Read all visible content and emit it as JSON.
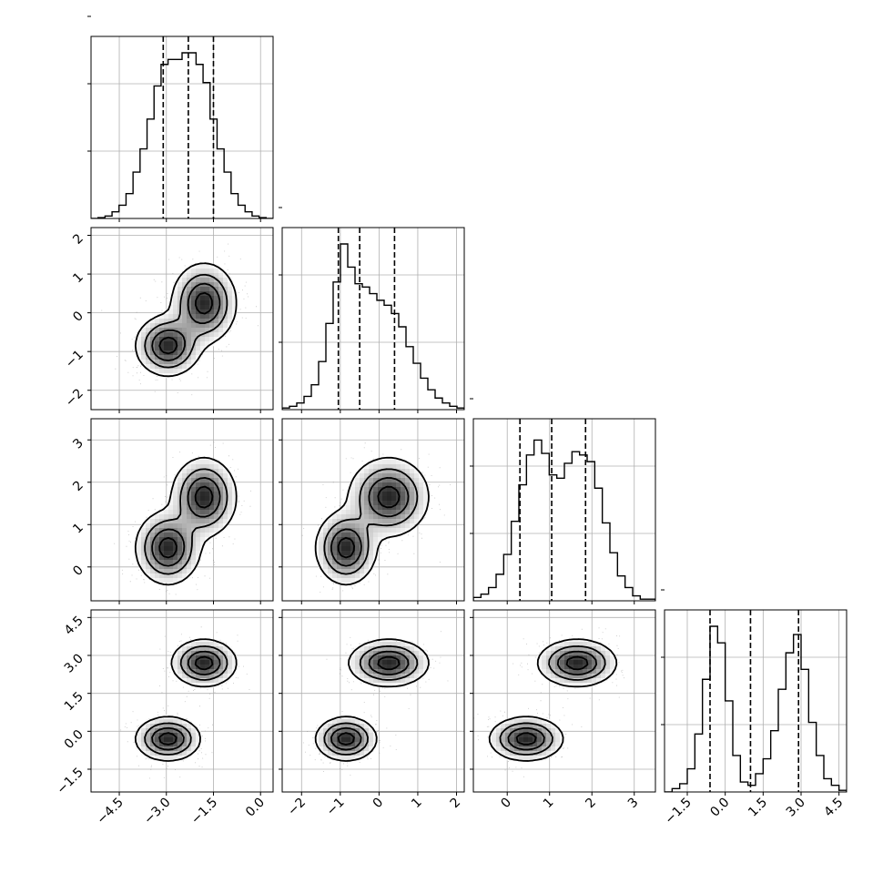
{
  "chart_data": {
    "type": "corner",
    "dimensions": 4,
    "ranges": [
      [
        -5.4,
        0.4
      ],
      [
        -2.5,
        2.2
      ],
      [
        -0.8,
        3.5
      ],
      [
        -2.4,
        4.8
      ]
    ],
    "ticks": [
      [
        -4.5,
        -3.0,
        -1.5,
        0.0
      ],
      [
        -2,
        -1,
        0,
        1,
        2
      ],
      [
        0,
        1,
        2,
        3
      ],
      [
        -1.5,
        0.0,
        1.5,
        3.0,
        4.5
      ]
    ],
    "tick_labels": [
      [
        "−4.5",
        "−3.0",
        "−1.5",
        "0.0"
      ],
      [
        "−2",
        "−1",
        "0",
        "1",
        "2"
      ],
      [
        "0",
        "1",
        "2",
        "3"
      ],
      [
        "−1.5",
        "0.0",
        "1.5",
        "3.0",
        "4.5"
      ]
    ],
    "grid": true,
    "quantiles": [
      0.16,
      0.5,
      0.84
    ],
    "quantile_lines": [
      [
        -3.1,
        -2.3,
        -1.5
      ],
      [
        -1.05,
        -0.5,
        0.4
      ],
      [
        0.3,
        1.05,
        1.85
      ],
      [
        -0.6,
        1.0,
        2.9
      ]
    ],
    "histograms": [
      {
        "x_start": -5.4,
        "x_end": 0.4,
        "counts": [
          0,
          0.005,
          0.015,
          0.04,
          0.08,
          0.15,
          0.28,
          0.42,
          0.6,
          0.8,
          0.93,
          0.96,
          0.96,
          1.0,
          1.0,
          0.93,
          0.82,
          0.6,
          0.42,
          0.28,
          0.15,
          0.08,
          0.04,
          0.015,
          0.005,
          0.0
        ]
      },
      {
        "x_start": -2.5,
        "x_end": 2.2,
        "counts": [
          0.01,
          0.02,
          0.04,
          0.08,
          0.15,
          0.29,
          0.52,
          0.77,
          1.0,
          0.86,
          0.76,
          0.74,
          0.7,
          0.66,
          0.63,
          0.58,
          0.5,
          0.38,
          0.28,
          0.19,
          0.12,
          0.07,
          0.04,
          0.02,
          0.01
        ]
      },
      {
        "x_start": -0.8,
        "x_end": 3.5,
        "counts": [
          0.02,
          0.04,
          0.08,
          0.16,
          0.28,
          0.48,
          0.7,
          0.88,
          0.97,
          0.89,
          0.76,
          0.74,
          0.83,
          0.9,
          0.88,
          0.84,
          0.68,
          0.47,
          0.29,
          0.15,
          0.08,
          0.03,
          0.01,
          0.01
        ]
      },
      {
        "x_start": -2.4,
        "x_end": 4.8,
        "counts": [
          0.0,
          0.02,
          0.05,
          0.14,
          0.35,
          0.68,
          1.0,
          0.9,
          0.55,
          0.22,
          0.06,
          0.04,
          0.11,
          0.2,
          0.37,
          0.62,
          0.84,
          0.95,
          0.74,
          0.42,
          0.22,
          0.08,
          0.04,
          0.01
        ]
      }
    ],
    "mixture": {
      "weights": [
        0.5,
        0.5
      ],
      "means": [
        [
          -2.95,
          -0.85,
          0.45,
          -0.3
        ],
        [
          -1.8,
          0.25,
          1.65,
          2.7
        ]
      ],
      "sds": [
        [
          0.5,
          0.38,
          0.42,
          0.42
        ],
        [
          0.5,
          0.5,
          0.45,
          0.45
        ]
      ]
    },
    "contour_levels": [
      0.12,
      0.34,
      0.6,
      0.86
    ]
  }
}
